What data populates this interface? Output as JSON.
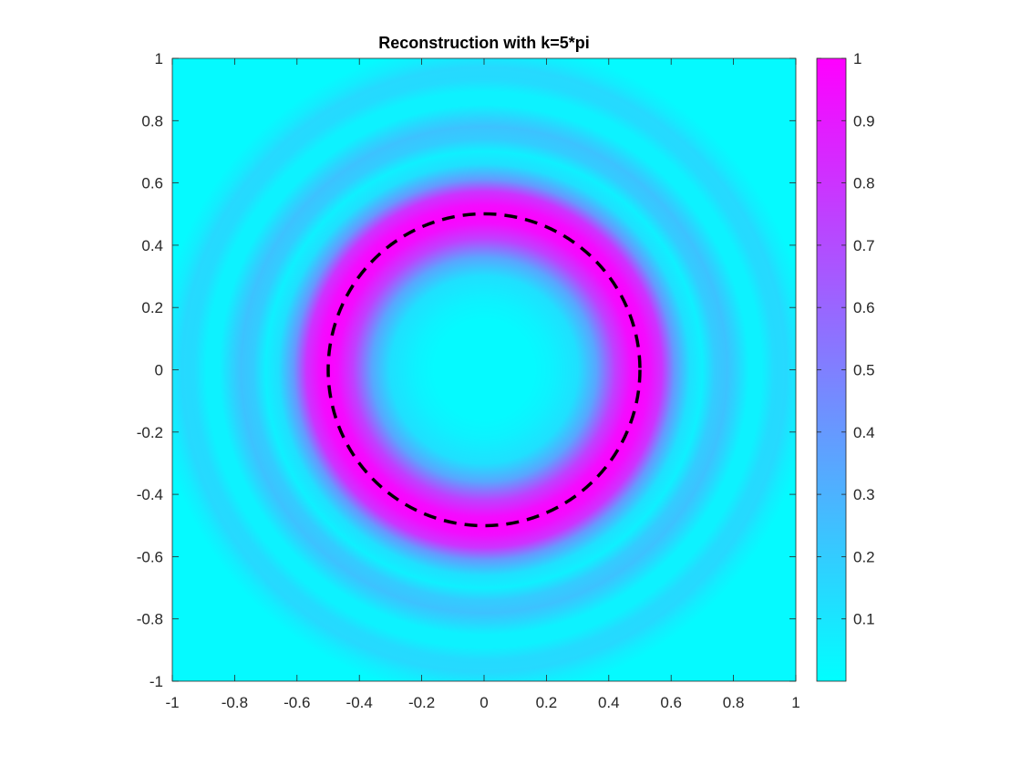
{
  "chart_data": {
    "type": "heatmap",
    "title": "Reconstruction with k=5*pi",
    "xlabel": "",
    "ylabel": "",
    "xlim": [
      -1,
      1
    ],
    "ylim": [
      -1,
      1
    ],
    "x_ticks": [
      -1,
      -0.8,
      -0.6,
      -0.4,
      -0.2,
      0,
      0.2,
      0.4,
      0.6,
      0.8,
      1
    ],
    "x_tick_labels": [
      "-1",
      "-0.8",
      "-0.6",
      "-0.4",
      "-0.2",
      "0",
      "0.2",
      "0.4",
      "0.6",
      "0.8",
      "1"
    ],
    "y_ticks": [
      1,
      0.8,
      0.6,
      0.4,
      0.2,
      0,
      -0.2,
      -0.4,
      -0.6,
      -0.8,
      -1
    ],
    "y_tick_labels": [
      "1",
      "0.8",
      "0.6",
      "0.4",
      "0.2",
      "0",
      "-0.2",
      "-0.4",
      "-0.6",
      "-0.8",
      "-1"
    ],
    "colormap": "cool",
    "colormap_start": "#00ffff",
    "colormap_end": "#ff00ff",
    "clim": [
      0,
      1
    ],
    "colorbar_ticks": [
      1,
      0.9,
      0.8,
      0.7,
      0.6,
      0.5,
      0.4,
      0.3,
      0.2,
      0.1
    ],
    "colorbar_tick_labels": [
      "1",
      "0.9",
      "0.8",
      "0.7",
      "0.6",
      "0.5",
      "0.4",
      "0.3",
      "0.2",
      "0.1"
    ],
    "radial_profile": [
      {
        "r": 0.0,
        "value": 0.02
      },
      {
        "r": 0.16,
        "value": 0.02
      },
      {
        "r": 0.22,
        "value": 0.05
      },
      {
        "r": 0.3,
        "value": 0.12
      },
      {
        "r": 0.36,
        "value": 0.35
      },
      {
        "r": 0.42,
        "value": 0.75
      },
      {
        "r": 0.47,
        "value": 0.95
      },
      {
        "r": 0.5,
        "value": 1.0
      },
      {
        "r": 0.53,
        "value": 0.95
      },
      {
        "r": 0.57,
        "value": 0.8
      },
      {
        "r": 0.61,
        "value": 0.4
      },
      {
        "r": 0.66,
        "value": 0.12
      },
      {
        "r": 0.7,
        "value": 0.06
      },
      {
        "r": 0.74,
        "value": 0.2
      },
      {
        "r": 0.78,
        "value": 0.24
      },
      {
        "r": 0.81,
        "value": 0.17
      },
      {
        "r": 0.85,
        "value": 0.05
      },
      {
        "r": 0.89,
        "value": 0.05
      },
      {
        "r": 0.93,
        "value": 0.14
      },
      {
        "r": 0.97,
        "value": 0.15
      },
      {
        "r": 1.01,
        "value": 0.07
      },
      {
        "r": 1.05,
        "value": 0.02
      },
      {
        "r": 1.5,
        "value": 0.02
      }
    ],
    "overlay_circle": {
      "center": [
        0,
        0
      ],
      "radius": 0.5,
      "style": "dashed",
      "color": "#000000"
    }
  }
}
